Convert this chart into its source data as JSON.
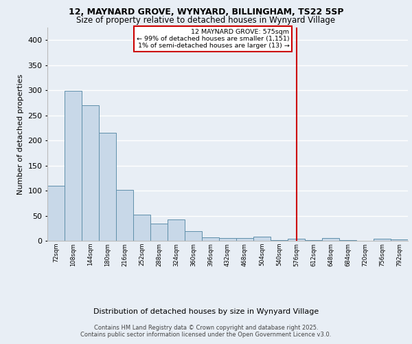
{
  "title1": "12, MAYNARD GROVE, WYNYARD, BILLINGHAM, TS22 5SP",
  "title2": "Size of property relative to detached houses in Wynyard Village",
  "xlabel": "Distribution of detached houses by size in Wynyard Village",
  "ylabel": "Number of detached properties",
  "bar_color": "#c8d8e8",
  "bar_edge_color": "#5f8faa",
  "background_color": "#e8eef5",
  "grid_color": "#ffffff",
  "annotation_line_color": "#cc0000",
  "annotation_box_edge_color": "#cc0000",
  "annotation_title": "12 MAYNARD GROVE: 575sqm",
  "annotation_line2": "← 99% of detached houses are smaller (1,151)",
  "annotation_line3": "1% of semi-detached houses are larger (13) →",
  "categories": [
    "72sqm",
    "108sqm",
    "144sqm",
    "180sqm",
    "216sqm",
    "252sqm",
    "288sqm",
    "324sqm",
    "360sqm",
    "396sqm",
    "432sqm",
    "468sqm",
    "504sqm",
    "540sqm",
    "576sqm",
    "612sqm",
    "648sqm",
    "684sqm",
    "720sqm",
    "756sqm",
    "792sqm"
  ],
  "values": [
    109,
    299,
    270,
    215,
    101,
    52,
    34,
    42,
    19,
    7,
    6,
    6,
    8,
    1,
    4,
    1,
    5,
    1,
    0,
    4,
    3
  ],
  "footnote1": "Contains HM Land Registry data © Crown copyright and database right 2025.",
  "footnote2": "Contains public sector information licensed under the Open Government Licence v3.0.",
  "ylim_max": 425,
  "vline_category": "576sqm",
  "title1_fontsize": 9,
  "title2_fontsize": 8.5,
  "ylabel_fontsize": 8,
  "xlabel_fontsize": 8,
  "tick_fontsize": 6,
  "footnote_fontsize": 6
}
